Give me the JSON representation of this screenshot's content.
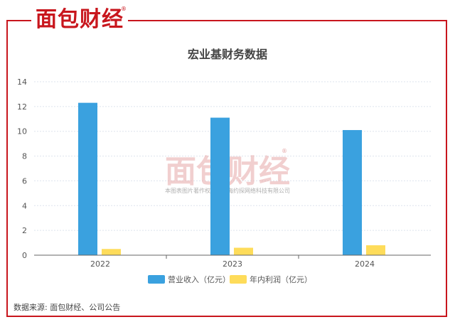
{
  "brand": {
    "logo_text": "面包财经",
    "logo_mark": "®"
  },
  "watermark": {
    "logo_text": "面包财经",
    "caption": "本图表图片著作权属于上海约探网络科技有限公司"
  },
  "chart_data": {
    "type": "bar",
    "title": "宏业基财务数据",
    "categories": [
      "2022",
      "2023",
      "2024"
    ],
    "series": [
      {
        "name": "营业收入（亿元）",
        "values": [
          12.3,
          11.1,
          10.1
        ],
        "color": "#3aa1df"
      },
      {
        "name": "年内利润（亿元）",
        "values": [
          0.5,
          0.6,
          0.8
        ],
        "color": "#fedc5a"
      }
    ],
    "yticks": [
      0,
      2,
      4,
      6,
      8,
      10,
      12,
      14
    ],
    "ylim": [
      0,
      14
    ],
    "grid": true,
    "legend": "bottom"
  },
  "footer": {
    "source": "数据来源: 面包财经、公司公告"
  }
}
